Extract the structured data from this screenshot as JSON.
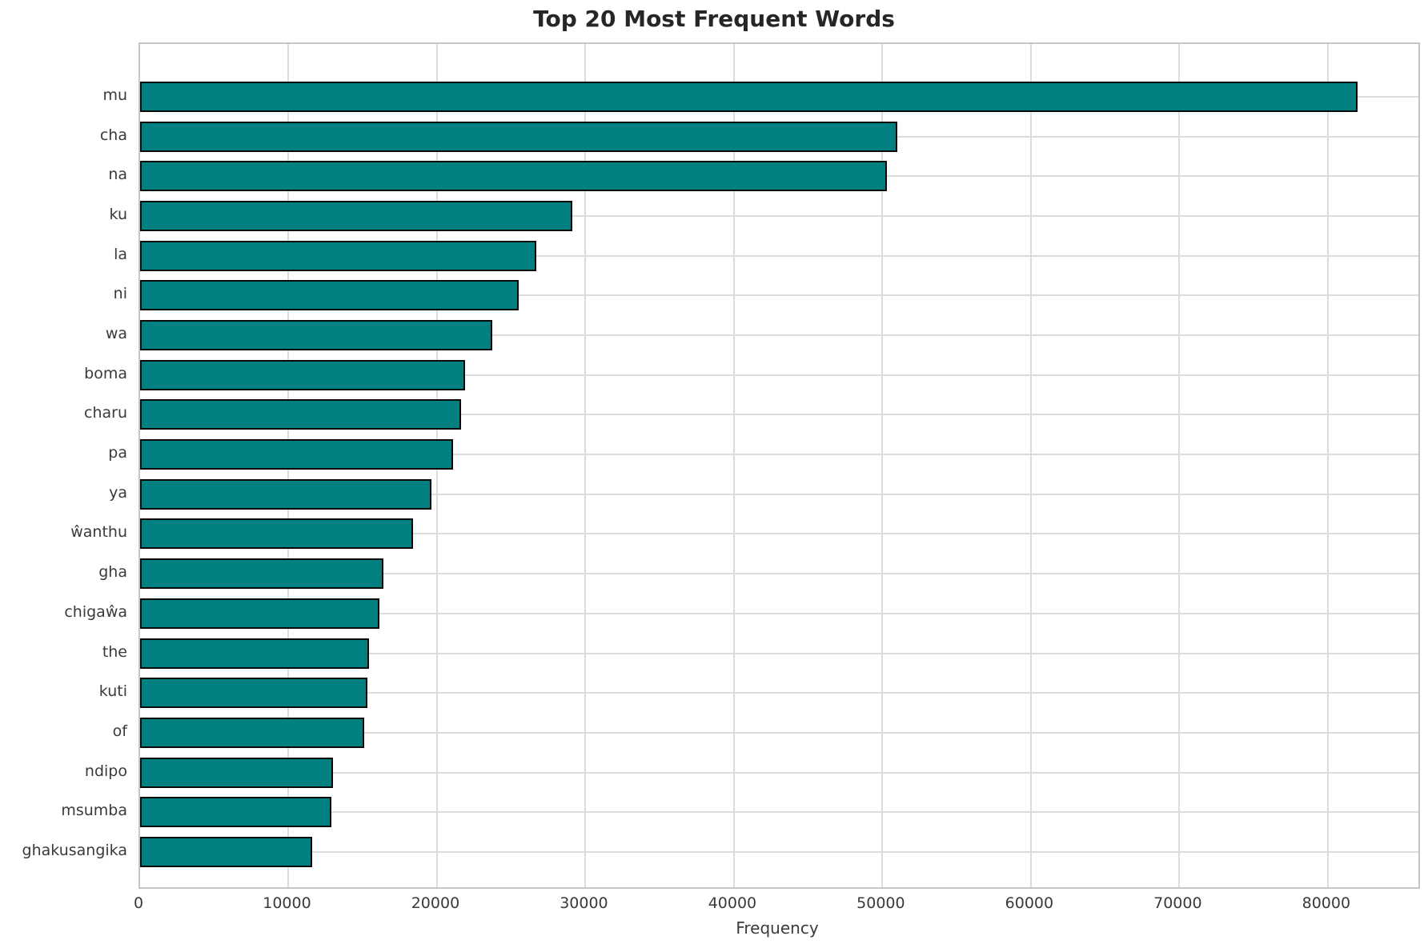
{
  "chart_data": {
    "type": "bar",
    "orientation": "horizontal",
    "title": "Top 20 Most Frequent Words",
    "xlabel": "Frequency",
    "ylabel": "",
    "categories": [
      "mu",
      "cha",
      "na",
      "ku",
      "la",
      "ni",
      "wa",
      "boma",
      "charu",
      "pa",
      "ya",
      "ŵanthu",
      "gha",
      "chigaŵa",
      "the",
      "kuti",
      "of",
      "ndipo",
      "msumba",
      "ghakusangika"
    ],
    "values": [
      82000,
      51000,
      50300,
      29100,
      26700,
      25500,
      23700,
      21900,
      21600,
      21100,
      19600,
      18400,
      16400,
      16100,
      15400,
      15300,
      15100,
      13000,
      12900,
      11600
    ],
    "xlim": [
      0,
      86100
    ],
    "xticks": [
      0,
      10000,
      20000,
      30000,
      40000,
      50000,
      60000,
      70000,
      80000
    ],
    "grid": true,
    "legend_position": "none",
    "bar_color": "#008080",
    "bar_edge_color": "#0a0a0a",
    "grid_color": "#dcdcdc",
    "spine_color": "#c6c6c6",
    "tick_text_color": "#3a3a3a",
    "title_color": "#262626",
    "background_color": "#ffffff"
  }
}
